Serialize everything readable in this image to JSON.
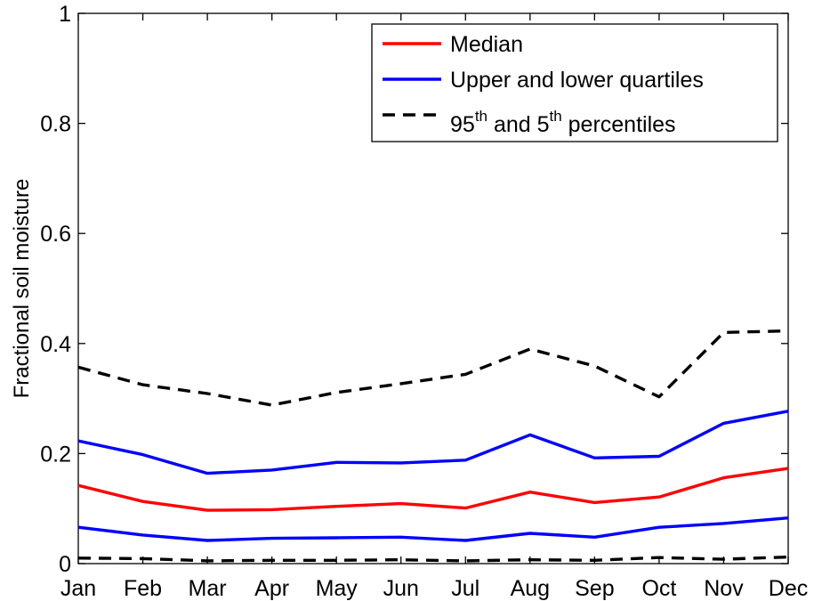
{
  "chart_data": {
    "type": "line",
    "title": "",
    "xlabel": "",
    "ylabel": "Fractional soil moisture",
    "categories": [
      "Jan",
      "Feb",
      "Mar",
      "Apr",
      "May",
      "Jun",
      "Jul",
      "Aug",
      "Sep",
      "Oct",
      "Nov",
      "Dec"
    ],
    "ylim": [
      0,
      1
    ],
    "yticks": [
      "0",
      "0.2",
      "0.4",
      "0.6",
      "0.8",
      "1"
    ],
    "grid": false,
    "legend_position": "top-right",
    "series": [
      {
        "name": "Median",
        "color": "#ff0000",
        "style": "solid",
        "values": [
          0.142,
          0.113,
          0.097,
          0.098,
          0.104,
          0.109,
          0.101,
          0.13,
          0.111,
          0.121,
          0.156,
          0.173
        ]
      },
      {
        "name": "Upper and lower quartiles",
        "group": "upper",
        "color": "#0000ff",
        "style": "solid",
        "values": [
          0.223,
          0.198,
          0.164,
          0.17,
          0.184,
          0.183,
          0.188,
          0.234,
          0.192,
          0.195,
          0.255,
          0.277
        ]
      },
      {
        "name": "Upper and lower quartiles",
        "group": "lower",
        "color": "#0000ff",
        "style": "solid",
        "values": [
          0.066,
          0.052,
          0.042,
          0.046,
          0.047,
          0.048,
          0.042,
          0.055,
          0.048,
          0.066,
          0.073,
          0.083
        ]
      },
      {
        "name": "95th and 5th percentiles",
        "group": "upper",
        "color": "#000000",
        "style": "dashed",
        "values": [
          0.357,
          0.325,
          0.309,
          0.288,
          0.311,
          0.327,
          0.344,
          0.39,
          0.359,
          0.303,
          0.42,
          0.423
        ]
      },
      {
        "name": "95th and 5th percentiles",
        "group": "lower",
        "color": "#000000",
        "style": "dashed",
        "values": [
          0.01,
          0.009,
          0.005,
          0.006,
          0.006,
          0.007,
          0.005,
          0.007,
          0.006,
          0.011,
          0.008,
          0.012
        ]
      }
    ]
  },
  "legend": [
    {
      "label": "Median",
      "color": "#ff0000",
      "style": "solid"
    },
    {
      "label": "Upper and lower quartiles",
      "color": "#0000ff",
      "style": "solid"
    },
    {
      "label_parts": [
        "95",
        "th",
        " and 5",
        "th",
        " percentiles"
      ],
      "color": "#000000",
      "style": "dashed"
    }
  ]
}
